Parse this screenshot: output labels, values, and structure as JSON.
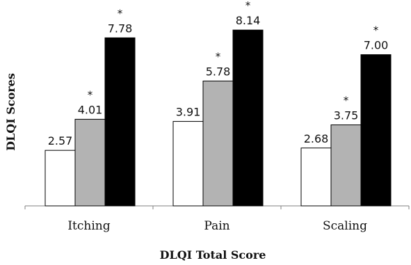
{
  "chart_data": {
    "type": "bar",
    "title": "",
    "xlabel": "DLQI Total Score",
    "ylabel": "DLQI Scores",
    "categories": [
      "Itching",
      "Pain",
      "Scaling"
    ],
    "series": [
      {
        "values": [
          2.57,
          3.91,
          2.68
        ],
        "labels": [
          "2.57",
          "3.91",
          "2.68"
        ],
        "significant": [
          false,
          false,
          false
        ],
        "fill": "#ffffff"
      },
      {
        "values": [
          4.01,
          5.78,
          3.75
        ],
        "labels": [
          "4.01",
          "5.78",
          "3.75"
        ],
        "significant": [
          true,
          true,
          true
        ],
        "fill": "#b3b3b3"
      },
      {
        "values": [
          7.78,
          8.14,
          7.0
        ],
        "labels": [
          "7.78",
          "8.14",
          "7.00"
        ],
        "significant": [
          true,
          true,
          true
        ],
        "fill": "#000000"
      }
    ],
    "significance_marker": "*",
    "ylim": [
      0,
      8.5
    ],
    "grid": false,
    "legend": "none",
    "colors": {
      "bar_stroke": "#000000",
      "axis": "#808080"
    }
  }
}
